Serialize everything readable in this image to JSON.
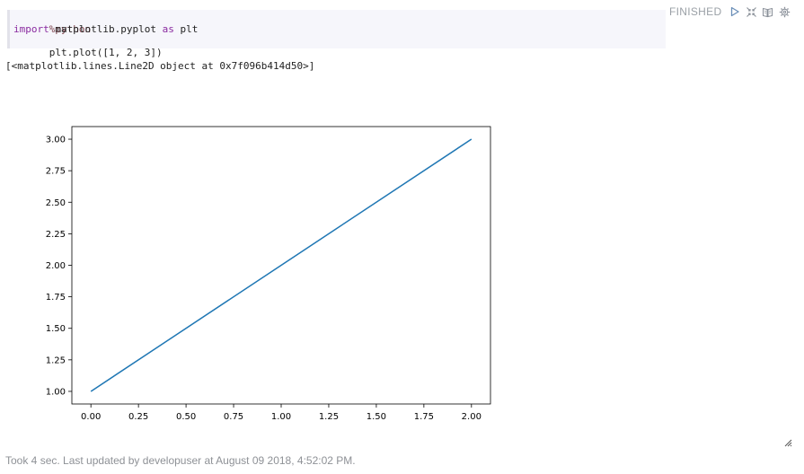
{
  "paragraph": {
    "status": "FINISHED",
    "code": {
      "line1_magic": "%python",
      "line2_import_kw": "import",
      "line2_module": " matplotlib.pyplot ",
      "line2_as_kw": "as",
      "line2_alias": " plt",
      "line3": "plt.plot([1, 2, 3])"
    },
    "output_text": "[<matplotlib.lines.Line2D object at 0x7f096b414d50>]",
    "footer": "Took 4 sec. Last updated by developuser at August 09 2018, 4:52:02 PM.",
    "controls": [
      {
        "name": "run-icon"
      },
      {
        "name": "hide-editor-icon"
      },
      {
        "name": "show-output-icon"
      },
      {
        "name": "settings-icon"
      }
    ]
  },
  "colors": {
    "line": "#1f77b4",
    "status": "#9aa0a6",
    "icon": "#6b8fb8"
  },
  "chart_data": {
    "type": "line",
    "x": [
      0,
      1,
      2
    ],
    "y": [
      1,
      2,
      3
    ],
    "xlim": [
      -0.1,
      2.1
    ],
    "ylim": [
      0.9,
      3.1
    ],
    "xticks": [
      "0.00",
      "0.25",
      "0.50",
      "0.75",
      "1.00",
      "1.25",
      "1.50",
      "1.75",
      "2.00"
    ],
    "yticks": [
      "1.00",
      "1.25",
      "1.50",
      "1.75",
      "2.00",
      "2.25",
      "2.50",
      "2.75",
      "3.00"
    ],
    "xtick_values": [
      0,
      0.25,
      0.5,
      0.75,
      1.0,
      1.25,
      1.5,
      1.75,
      2.0
    ],
    "ytick_values": [
      1.0,
      1.25,
      1.5,
      1.75,
      2.0,
      2.25,
      2.5,
      2.75,
      3.0
    ],
    "title": "",
    "xlabel": "",
    "ylabel": "",
    "grid": false
  }
}
